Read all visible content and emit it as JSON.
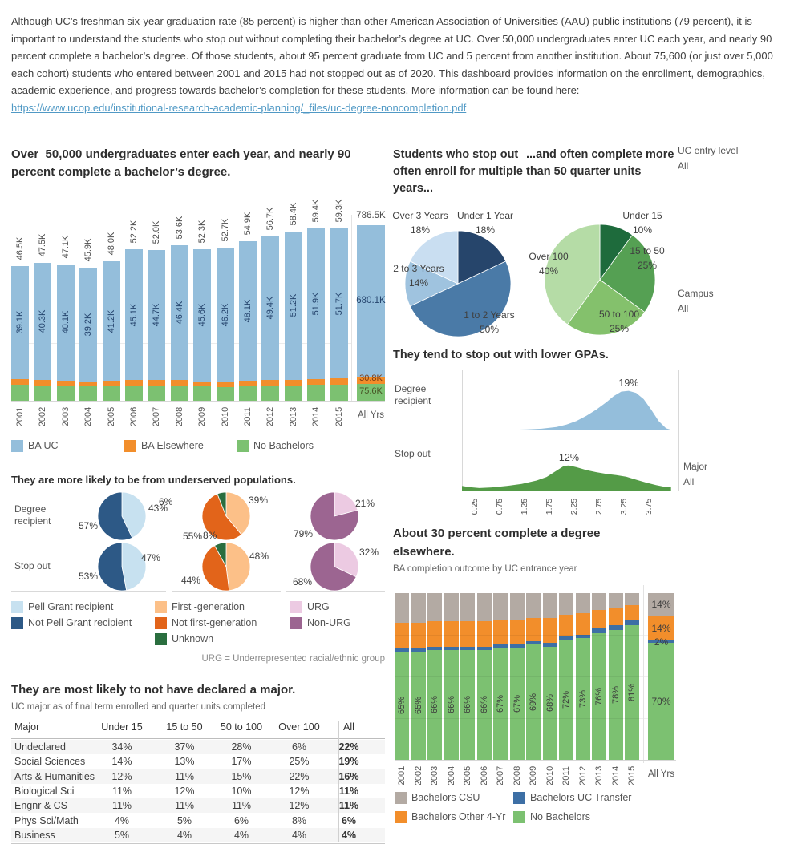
{
  "page": {
    "intro_text": "Although UC’s freshman six-year graduation rate (85 percent) is higher than other American Association of Universities (AAU) public institutions (79 percent), it is important to understand the students who stop out without completing their bachelor’s degree at UC. Over 50,000 undergraduates enter UC each year, and nearly 90 percent complete a bachelor’s degree. Of those students, about 95 percent graduate from UC and 5 percent  from another institution. About 75,600 (or just over 5,000 each cohort) students who entered between 2001 and 2015 had not stopped out as of 2020. This dashboard provides information on the enrollment, demographics, academic experience, and progress towards bachelor’s completion for these students. More information can be found here:",
    "link_text": "https://www.ucop.edu/institutional-research-academic-planning/_files/uc-degree-noncompletion.pdf"
  },
  "filters": [
    {
      "id": "uc-entry-level",
      "label": "UC entry level",
      "value": "All"
    },
    {
      "id": "campus",
      "label": "Campus",
      "value": "All"
    },
    {
      "id": "major",
      "label": "Major",
      "value": "All"
    }
  ],
  "chart_data": [
    {
      "id": "entrants",
      "type": "bar",
      "stacked": true,
      "title": "Over  50,000 undergraduates enter each year, and nearly 90 percent complete a bachelor’s degree.",
      "unit": "K",
      "categories": [
        "2001",
        "2002",
        "2003",
        "2004",
        "2005",
        "2006",
        "2007",
        "2008",
        "2009",
        "2010",
        "2011",
        "2012",
        "2013",
        "2014",
        "2015"
      ],
      "totals": [
        46.5,
        47.5,
        47.1,
        45.9,
        48.0,
        52.2,
        52.0,
        53.6,
        52.3,
        52.7,
        54.9,
        56.7,
        58.4,
        59.4,
        59.3
      ],
      "series": [
        {
          "name": "BA UC",
          "color": "#94bedb",
          "values": [
            39.1,
            40.3,
            40.1,
            39.2,
            41.2,
            45.1,
            44.7,
            46.4,
            45.6,
            46.2,
            48.1,
            49.4,
            51.2,
            51.9,
            51.7
          ]
        },
        {
          "name": "BA Elsewhere",
          "color": "#f28e2b",
          "values_est": [
            2.0,
            2.0,
            1.9,
            1.8,
            1.8,
            1.9,
            2.0,
            1.9,
            1.8,
            1.7,
            1.8,
            2.0,
            1.9,
            2.0,
            2.0
          ]
        },
        {
          "name": "No Bachelors",
          "color": "#7cc171",
          "values_est": [
            5.4,
            5.2,
            5.1,
            4.9,
            5.0,
            5.2,
            5.3,
            5.3,
            4.9,
            4.8,
            5.0,
            5.3,
            5.3,
            5.5,
            5.6
          ]
        }
      ],
      "summary": {
        "label": "All Yrs",
        "total": 786.5,
        "ba_uc": 680.1,
        "ba_elsewhere": 30.8,
        "no_bachelors": 75.6
      }
    },
    {
      "id": "years-enrolled",
      "type": "pie",
      "title": "Students who stop out often enroll for multiple years...",
      "slices": [
        {
          "label": "Under 1 Year",
          "pct": 18,
          "color": "#26456b"
        },
        {
          "label": "1 to 2 Years",
          "pct": 50,
          "color": "#4a7aa7"
        },
        {
          "label": "2 to 3 Years",
          "pct": 14,
          "color": "#9fc3df"
        },
        {
          "label": "Over 3 Years",
          "pct": 18,
          "color": "#c9def1"
        }
      ]
    },
    {
      "id": "units-completed",
      "type": "pie",
      "title": "...and often complete more than 50 quarter units",
      "slices": [
        {
          "label": "Under 15",
          "pct": 10,
          "color": "#1e6b3c"
        },
        {
          "label": "15 to 50",
          "pct": 25,
          "color": "#55a053"
        },
        {
          "label": "50 to 100",
          "pct": 25,
          "color": "#84c16c"
        },
        {
          "label": "Over 100",
          "pct": 40,
          "color": "#b5dca6"
        }
      ]
    },
    {
      "id": "demographics",
      "type": "pie",
      "title": "They are more likely to be from underserved populations.",
      "rows": [
        "Degree recipient",
        "Stop out"
      ],
      "note": "URG = Underrepresented racial/ethnic group",
      "columns": [
        {
          "name": "pell",
          "legend": [
            {
              "label": "Pell Grant recipient",
              "color": "#c7e1f0"
            },
            {
              "label": "Not Pell Grant recipient",
              "color": "#2d5986"
            }
          ],
          "pies": [
            [
              43,
              57
            ],
            [
              47,
              53
            ]
          ]
        },
        {
          "name": "generation",
          "legend": [
            {
              "label": "First -generation",
              "color": "#fcc088"
            },
            {
              "label": "Not first-generation",
              "color": "#e2641a"
            },
            {
              "label": "Unknown",
              "color": "#2a6e3f"
            }
          ],
          "pies": [
            [
              39,
              55,
              6
            ],
            [
              48,
              44,
              8
            ]
          ]
        },
        {
          "name": "urg",
          "legend": [
            {
              "label": "URG",
              "color": "#eccae2"
            },
            {
              "label": "Non-URG",
              "color": "#9c6591"
            }
          ],
          "pies": [
            [
              21,
              79
            ],
            [
              32,
              68
            ]
          ]
        }
      ]
    },
    {
      "id": "gpa",
      "type": "area",
      "title": "They tend to stop out with lower GPAs.",
      "x_ticks": [
        "0.25",
        "0.75",
        "1.25",
        "1.75",
        "2.25",
        "2.75",
        "3.25",
        "3.75"
      ],
      "series": [
        {
          "name": "Degree recipient",
          "color": "#94bedb",
          "peak_label": "19%",
          "points": [
            [
              0.05,
              0.2
            ],
            [
              0.6,
              0.25
            ],
            [
              1.0,
              0.3
            ],
            [
              1.3,
              0.45
            ],
            [
              1.6,
              0.8
            ],
            [
              1.9,
              1.6
            ],
            [
              2.1,
              2.8
            ],
            [
              2.3,
              4.5
            ],
            [
              2.5,
              7.0
            ],
            [
              2.7,
              10.0
            ],
            [
              2.9,
              13.5
            ],
            [
              3.05,
              16.5
            ],
            [
              3.2,
              18.6
            ],
            [
              3.35,
              19.0
            ],
            [
              3.5,
              18.0
            ],
            [
              3.65,
              15.0
            ],
            [
              3.8,
              10.0
            ],
            [
              3.95,
              4.5
            ],
            [
              4.1,
              1.0
            ],
            [
              4.2,
              0.3
            ]
          ]
        },
        {
          "name": "Stop out",
          "color": "#549b47",
          "peak_label": "12%",
          "points": [
            [
              0.0,
              2.2
            ],
            [
              0.15,
              1.6
            ],
            [
              0.35,
              1.2
            ],
            [
              0.6,
              1.5
            ],
            [
              0.9,
              2.2
            ],
            [
              1.2,
              3.2
            ],
            [
              1.5,
              4.8
            ],
            [
              1.7,
              6.5
            ],
            [
              1.9,
              9.5
            ],
            [
              2.05,
              11.8
            ],
            [
              2.15,
              12.0
            ],
            [
              2.3,
              11.2
            ],
            [
              2.5,
              9.8
            ],
            [
              2.7,
              8.8
            ],
            [
              2.9,
              8.0
            ],
            [
              3.1,
              7.4
            ],
            [
              3.3,
              6.6
            ],
            [
              3.5,
              5.2
            ],
            [
              3.7,
              3.8
            ],
            [
              3.9,
              2.6
            ],
            [
              4.05,
              1.9
            ],
            [
              4.2,
              1.6
            ]
          ]
        }
      ]
    },
    {
      "id": "completion",
      "type": "bar",
      "stacked": true,
      "percent": true,
      "title": "About 30 percent complete a degree elsewhere.",
      "subtitle": "BA completion outcome by UC entrance year",
      "categories": [
        "2001",
        "2002",
        "2003",
        "2004",
        "2005",
        "2006",
        "2007",
        "2008",
        "2009",
        "2010",
        "2011",
        "2012",
        "2013",
        "2014",
        "2015"
      ],
      "summary_label": "All Yrs",
      "series": [
        {
          "name": "No Bachelors",
          "color": "#7cc171",
          "labeled": true,
          "values": [
            65,
            65,
            66,
            66,
            66,
            66,
            67,
            67,
            69,
            68,
            72,
            73,
            76,
            78,
            81
          ],
          "summary_pct": 70
        },
        {
          "name": "Bachelors UC Transfer",
          "color": "#3d6fa5",
          "values_est": [
            2,
            2,
            2,
            2,
            2,
            2,
            2,
            2,
            2,
            2,
            2,
            2,
            3,
            3,
            3
          ],
          "summary_pct": 2
        },
        {
          "name": "Bachelors Other 4-Yr",
          "color": "#f28e2b",
          "values_est": [
            15,
            15,
            15,
            15,
            15,
            15,
            15,
            15,
            14,
            15,
            13,
            13,
            11,
            10,
            9
          ],
          "summary_pct": 14
        },
        {
          "name": "Bachelors CSU",
          "color": "#b3aaa3",
          "values_est": [
            18,
            18,
            17,
            17,
            17,
            17,
            16,
            16,
            15,
            15,
            13,
            12,
            10,
            9,
            7
          ],
          "summary_pct": 14
        }
      ],
      "legend_order": [
        "Bachelors CSU",
        "Bachelors UC Transfer",
        "Bachelors Other 4-Yr",
        "No Bachelors"
      ]
    },
    {
      "id": "majors",
      "type": "table",
      "title": "They are most likely to not have declared a major.",
      "subtitle": "UC major as of final term enrolled and quarter units completed",
      "columns": [
        "Major",
        "Under 15",
        "15 to 50",
        "50 to 100",
        "Over 100",
        "All"
      ],
      "rows": [
        [
          "Undeclared",
          "34%",
          "37%",
          "28%",
          "6%",
          "22%"
        ],
        [
          "Social Sciences",
          "14%",
          "13%",
          "17%",
          "25%",
          "19%"
        ],
        [
          "Arts & Humanities",
          "12%",
          "11%",
          "15%",
          "22%",
          "16%"
        ],
        [
          "Biological Sci",
          "11%",
          "12%",
          "10%",
          "12%",
          "11%"
        ],
        [
          "Engnr & CS",
          "11%",
          "11%",
          "11%",
          "12%",
          "11%"
        ],
        [
          "Phys Sci/Math",
          "4%",
          "5%",
          "6%",
          "8%",
          "6%"
        ],
        [
          "Business",
          "5%",
          "4%",
          "4%",
          "4%",
          "4%"
        ]
      ]
    }
  ]
}
